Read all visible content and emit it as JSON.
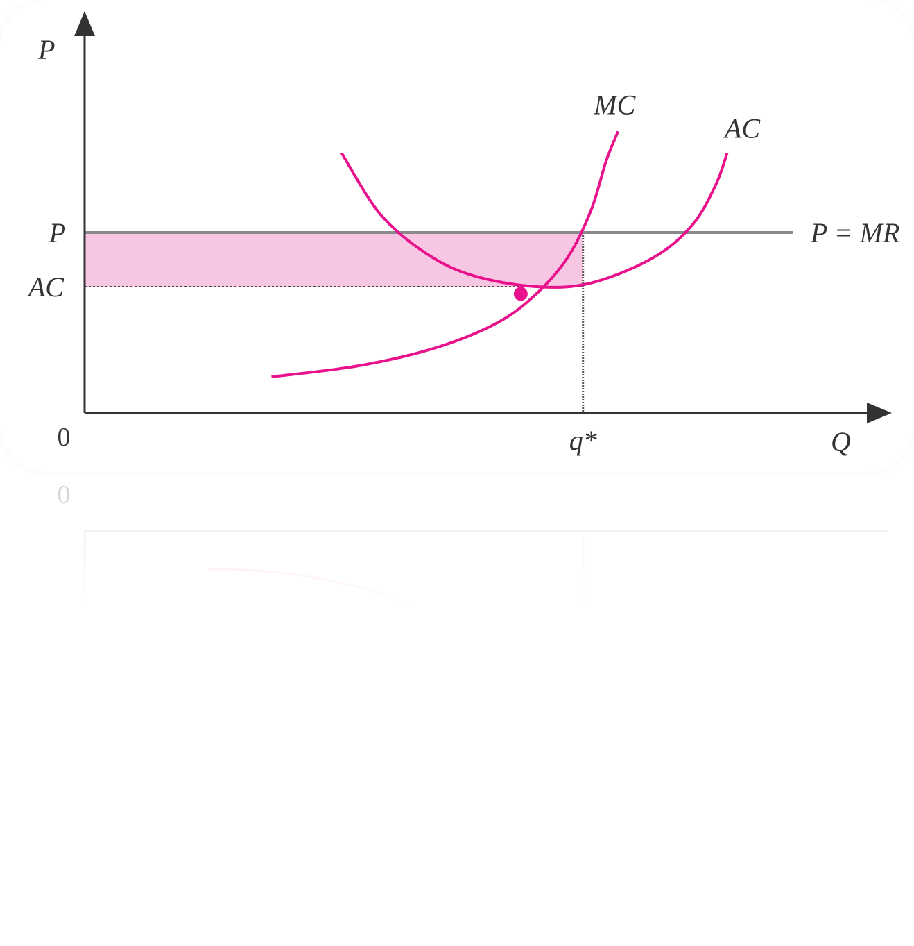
{
  "colors": {
    "curve": "#e8138c",
    "shade": "#f7c6e2",
    "axis": "#333333",
    "price_line": "#8a8a8a"
  },
  "chart_data": {
    "type": "line",
    "title": "",
    "xlabel": "Q",
    "ylabel": "P",
    "origin_label": "0",
    "x_tick_label": "q*",
    "y_tick_labels": {
      "price": "P",
      "average_cost": "AC"
    },
    "grid": false,
    "xlim": [
      0,
      10
    ],
    "ylim": [
      0,
      10
    ],
    "series": [
      {
        "name": "MC",
        "values": [
          [
            2.4,
            1.0
          ],
          [
            3.5,
            1.3
          ],
          [
            4.5,
            1.8
          ],
          [
            5.3,
            2.5
          ],
          [
            5.8,
            3.3
          ],
          [
            6.2,
            4.3
          ],
          [
            6.5,
            5.6
          ],
          [
            6.7,
            7.0
          ],
          [
            6.85,
            7.8
          ]
        ]
      },
      {
        "name": "AC",
        "values": [
          [
            3.3,
            7.2
          ],
          [
            3.8,
            5.5
          ],
          [
            4.4,
            4.4
          ],
          [
            5.0,
            3.8
          ],
          [
            5.8,
            3.5
          ],
          [
            6.5,
            3.6
          ],
          [
            7.3,
            4.3
          ],
          [
            7.8,
            5.2
          ],
          [
            8.1,
            6.3
          ],
          [
            8.25,
            7.2
          ]
        ]
      },
      {
        "name": "P = MR",
        "values": [
          [
            0,
            5.0
          ],
          [
            9.1,
            5.0
          ]
        ]
      }
    ],
    "annotations": {
      "price": 5.0,
      "average_cost": 3.5,
      "q_star": 6.4,
      "shutdown_point": [
        5.6,
        3.3
      ],
      "shaded_region": "profit rectangle between AC and P up to q*"
    }
  }
}
